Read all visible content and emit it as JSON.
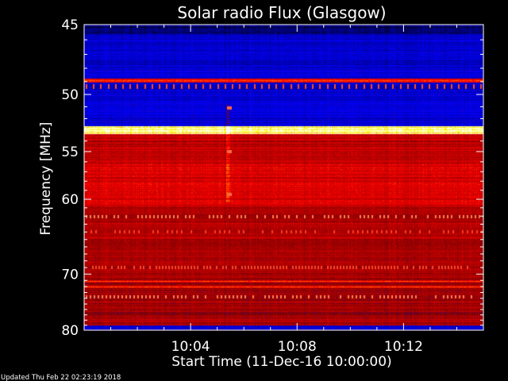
{
  "chart_data": {
    "type": "heatmap",
    "title": "Solar radio Flux (Glasgow)",
    "xlabel": "Start Time (11-Dec-16 10:00:00)",
    "ylabel": "Frequency [MHz]",
    "x_ticks": [
      "10:04",
      "10:08",
      "10:12"
    ],
    "x_tick_values_min": [
      4,
      8,
      12
    ],
    "xlim_min": [
      0,
      15
    ],
    "y_ticks": [
      "45",
      "50",
      "55",
      "60",
      "70",
      "80"
    ],
    "y_tick_values": [
      45,
      50,
      55,
      60,
      70,
      80
    ],
    "ylim": [
      45,
      80
    ],
    "y_scale": "reciprocal",
    "colormap": [
      "#000000",
      "#00007f",
      "#0000ff",
      "#7f0000",
      "#ff0000",
      "#ffff00",
      "#ffffff"
    ],
    "features": {
      "bright_bands_mhz": [
        48.9,
        52.8,
        71.1,
        72.0
      ],
      "spike_rows_mhz": [
        49.3,
        62.1,
        64.0,
        69.0,
        73.8
      ],
      "burst_time_min": 5.4,
      "burst_freqs_mhz": [
        51.1,
        55.0,
        59.5
      ]
    }
  },
  "footer": {
    "updated": "Updated Thu Feb 22 02:23:19 2018"
  }
}
